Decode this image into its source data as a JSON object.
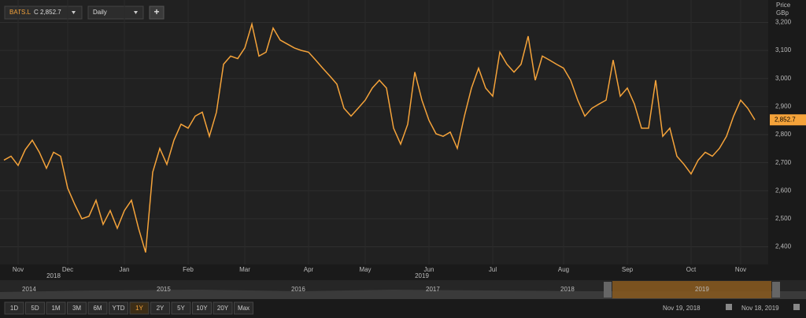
{
  "toolbar": {
    "symbol": "BATS.L",
    "close_prefix": "C",
    "interval": "Daily",
    "add": "+"
  },
  "chart_data": {
    "type": "line",
    "axis_title": [
      "Price",
      "GBp"
    ],
    "categories": [
      null,
      null,
      "Nov",
      null,
      null,
      null,
      null,
      null,
      null,
      "Dec",
      null,
      null,
      null,
      null,
      null,
      null,
      null,
      "Jan",
      null,
      null,
      null,
      null,
      null,
      null,
      null,
      null,
      "Feb",
      null,
      null,
      null,
      null,
      null,
      null,
      null,
      "Mar",
      null,
      null,
      null,
      null,
      null,
      null,
      null,
      null,
      "Apr",
      null,
      null,
      null,
      null,
      null,
      null,
      null,
      "May",
      null,
      null,
      null,
      null,
      null,
      null,
      null,
      null,
      "Jun",
      null,
      null,
      null,
      null,
      null,
      null,
      null,
      null,
      "Jul",
      null,
      null,
      null,
      null,
      null,
      null,
      null,
      null,
      null,
      "Aug",
      null,
      null,
      null,
      null,
      null,
      null,
      null,
      null,
      "Sep",
      null,
      null,
      null,
      null,
      null,
      null,
      null,
      null,
      "Oct",
      null,
      null,
      null,
      null,
      null,
      null,
      "Nov",
      null,
      null
    ],
    "year_labels": [
      "2018",
      "2019"
    ],
    "series": [
      {
        "name": "BATS.L",
        "color": "#f5a33a",
        "values": [
          2709,
          2723,
          2690,
          2746,
          2780,
          2737,
          2680,
          2737,
          2723,
          2609,
          2551,
          2500,
          2509,
          2566,
          2480,
          2529,
          2466,
          2529,
          2566,
          2466,
          2380,
          2666,
          2751,
          2694,
          2780,
          2837,
          2823,
          2866,
          2880,
          2794,
          2880,
          3051,
          3080,
          3071,
          3109,
          3194,
          3080,
          3094,
          3180,
          3137,
          3123,
          3109,
          3100,
          3094,
          3066,
          3037,
          3009,
          2980,
          2894,
          2866,
          2894,
          2923,
          2966,
          2994,
          2966,
          2823,
          2766,
          2837,
          3023,
          2923,
          2851,
          2803,
          2794,
          2809,
          2751,
          2866,
          2966,
          3037,
          2966,
          2937,
          3094,
          3051,
          3023,
          3051,
          3151,
          2994,
          3080,
          3066,
          3051,
          3037,
          2994,
          2923,
          2866,
          2894,
          2909,
          2923,
          3066,
          2937,
          2966,
          2909,
          2823,
          2823,
          2994,
          2794,
          2823,
          2723,
          2694,
          2660,
          2709,
          2737,
          2723,
          2751,
          2794,
          2866,
          2923,
          2894,
          2852.7
        ]
      }
    ],
    "last_price": {
      "value": 2852.7,
      "label": "2,852.7"
    },
    "ylim": [
      2337,
      3280
    ],
    "yticks": [
      {
        "value": 2400,
        "label": "2,400"
      },
      {
        "value": 2500,
        "label": "2,500"
      },
      {
        "value": 2600,
        "label": "2,600"
      },
      {
        "value": 2700,
        "label": "2,700"
      },
      {
        "value": 2800,
        "label": "2,800"
      },
      {
        "value": 2900,
        "label": "2,900"
      },
      {
        "value": 3000,
        "label": "3,000"
      },
      {
        "value": 3100,
        "label": "3,100"
      },
      {
        "value": 3200,
        "label": "3,200"
      }
    ],
    "grid": true
  },
  "navigator": {
    "years": [
      "2014",
      "2015",
      "2016",
      "2017",
      "2018",
      "2019"
    ]
  },
  "range_buttons": [
    "1D",
    "5D",
    "1M",
    "3M",
    "6M",
    "YTD",
    "1Y",
    "2Y",
    "5Y",
    "10Y",
    "20Y",
    "Max"
  ],
  "selected_range": "1Y",
  "date_range": {
    "from": "Nov 19, 2018",
    "to": "Nov 18, 2019"
  }
}
